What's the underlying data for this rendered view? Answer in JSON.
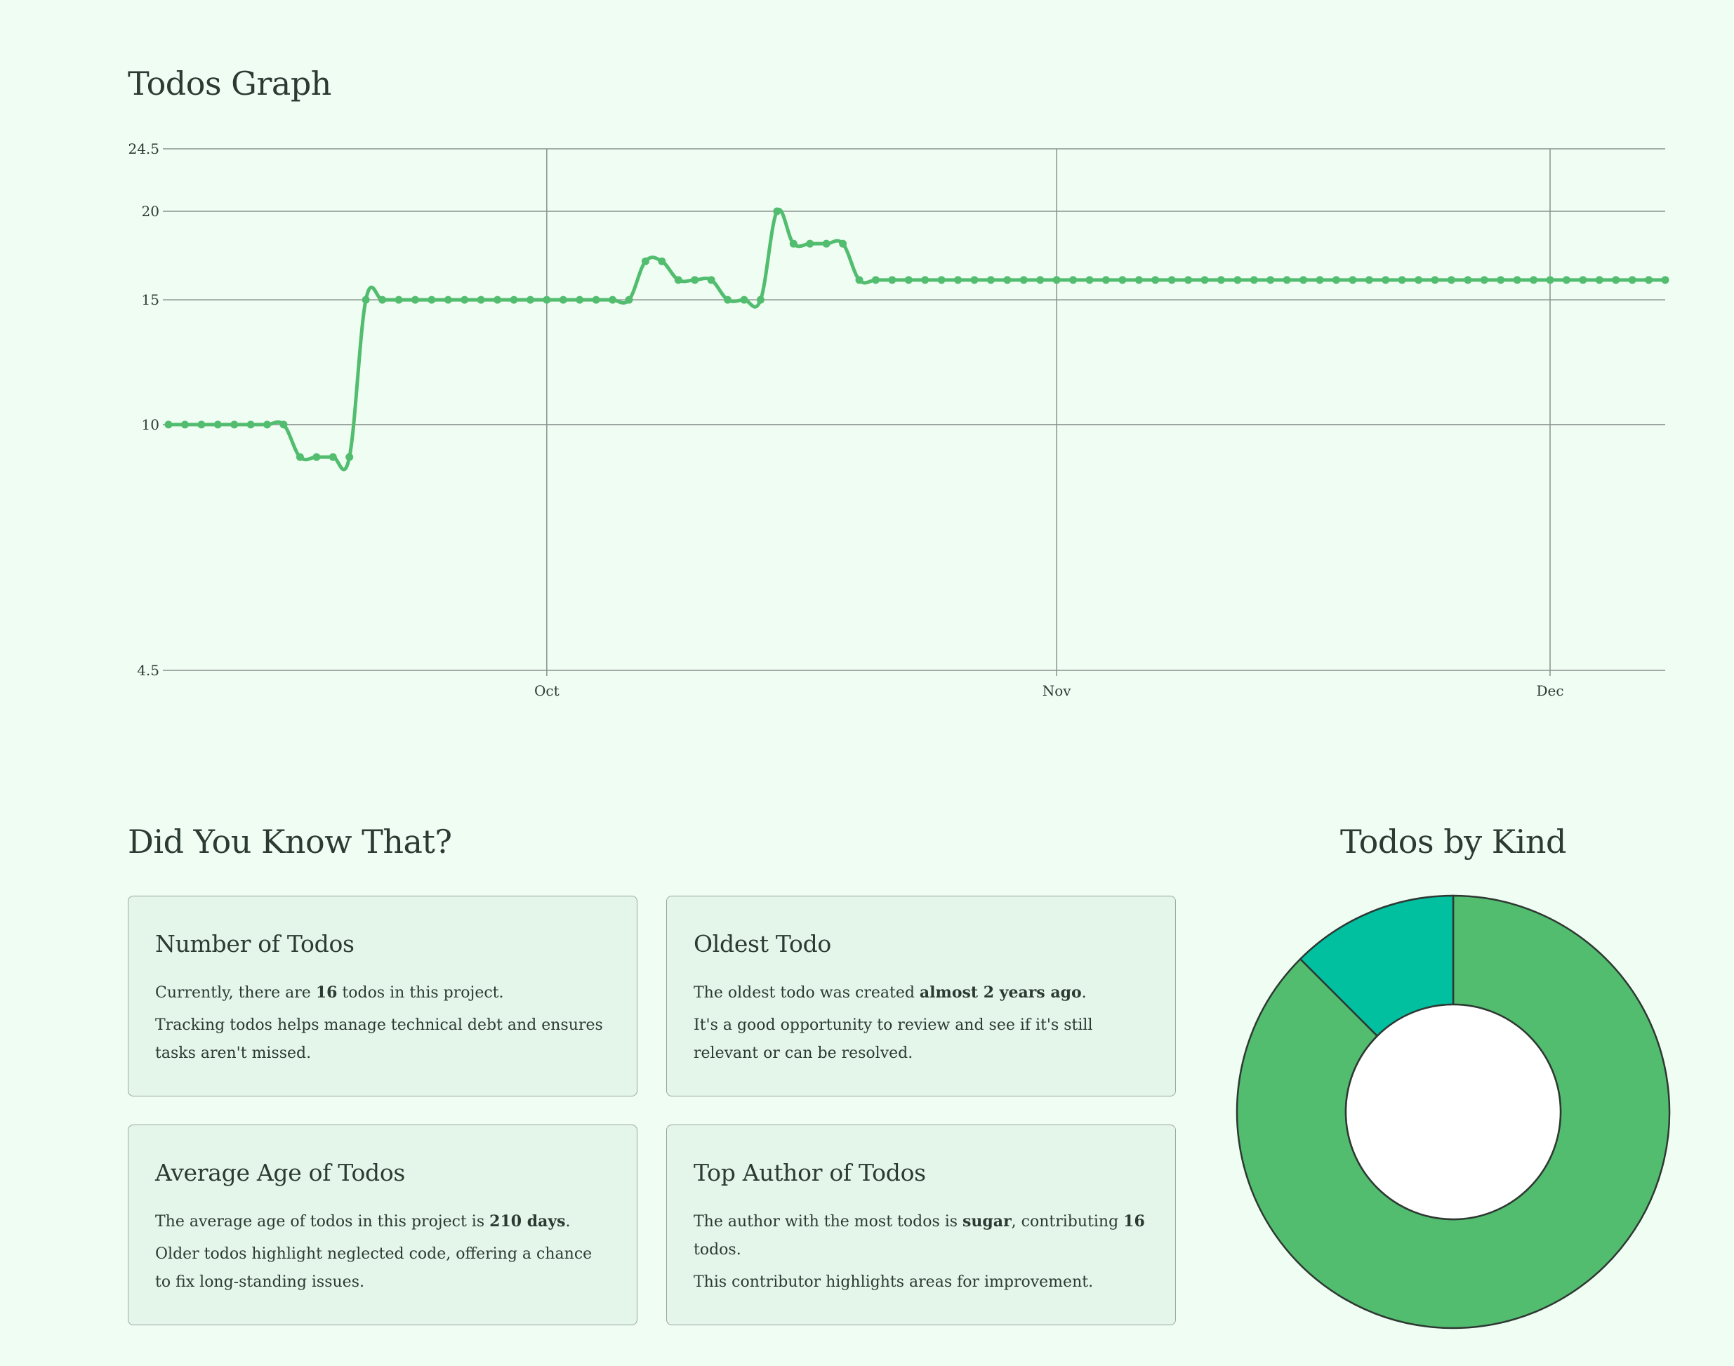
{
  "graph": {
    "title": "Todos Graph"
  },
  "chart_data": [
    {
      "type": "line",
      "x_axis_type": "date",
      "x": [
        "2024-09-08",
        "2024-09-09",
        "2024-09-10",
        "2024-09-11",
        "2024-09-12",
        "2024-09-13",
        "2024-09-14",
        "2024-09-15",
        "2024-09-16",
        "2024-09-17",
        "2024-09-18",
        "2024-09-19",
        "2024-09-20",
        "2024-09-21",
        "2024-09-22",
        "2024-09-23",
        "2024-09-24",
        "2024-09-25",
        "2024-09-26",
        "2024-09-27",
        "2024-09-28",
        "2024-09-29",
        "2024-09-30",
        "2024-10-01",
        "2024-10-02",
        "2024-10-03",
        "2024-10-04",
        "2024-10-05",
        "2024-10-06",
        "2024-10-07",
        "2024-10-08",
        "2024-10-09",
        "2024-10-10",
        "2024-10-11",
        "2024-10-12",
        "2024-10-13",
        "2024-10-14",
        "2024-10-15",
        "2024-10-16",
        "2024-10-17",
        "2024-10-18",
        "2024-10-19",
        "2024-10-20",
        "2024-10-21",
        "2024-10-22",
        "2024-10-23",
        "2024-10-24",
        "2024-10-25",
        "2024-10-26",
        "2024-10-27",
        "2024-10-28",
        "2024-10-29",
        "2024-10-30",
        "2024-10-31",
        "2024-11-01",
        "2024-11-02",
        "2024-11-03",
        "2024-11-04",
        "2024-11-05",
        "2024-11-06",
        "2024-11-07",
        "2024-11-08",
        "2024-11-09",
        "2024-11-10",
        "2024-11-11",
        "2024-11-12",
        "2024-11-13",
        "2024-11-14",
        "2024-11-15",
        "2024-11-16",
        "2024-11-17",
        "2024-11-18",
        "2024-11-19",
        "2024-11-20",
        "2024-11-21",
        "2024-11-22",
        "2024-11-23",
        "2024-11-24",
        "2024-11-25",
        "2024-11-26",
        "2024-11-27",
        "2024-11-28",
        "2024-11-29",
        "2024-11-30",
        "2024-12-01",
        "2024-12-02",
        "2024-12-03",
        "2024-12-04",
        "2024-12-05",
        "2024-12-06",
        "2024-12-07",
        "2024-12-08"
      ],
      "values": [
        10,
        10,
        10,
        10,
        10,
        10,
        10,
        10,
        9,
        9,
        9,
        9,
        15,
        15,
        15,
        15,
        15,
        15,
        15,
        15,
        15,
        15,
        15,
        15,
        15,
        15,
        15,
        15,
        15,
        17,
        17,
        16,
        16,
        16,
        15,
        15,
        15,
        20,
        18,
        18,
        18,
        18,
        16,
        16,
        16,
        16,
        16,
        16,
        16,
        16,
        16,
        16,
        16,
        16,
        16,
        16,
        16,
        16,
        16,
        16,
        16,
        16,
        16,
        16,
        16,
        16,
        16,
        16,
        16,
        16,
        16,
        16,
        16,
        16,
        16,
        16,
        16,
        16,
        16,
        16,
        16,
        16,
        16,
        16,
        16,
        16,
        16,
        16,
        16,
        16,
        16,
        16
      ],
      "x_ticks": [
        {
          "date": "2024-10-01",
          "label": "Oct"
        },
        {
          "date": "2024-11-01",
          "label": "Nov"
        },
        {
          "date": "2024-12-01",
          "label": "Dec"
        }
      ],
      "y_ticks": [
        "4.5",
        "10",
        "15",
        "20",
        "24.5"
      ],
      "ylim": [
        4.5,
        24.5
      ],
      "y_scale": "log",
      "grid": true,
      "line_color": "#52bd6e"
    },
    {
      "type": "pie",
      "donut": true,
      "title": "Todos by Kind",
      "values": [
        14,
        2
      ],
      "colors": [
        "#52bd6e",
        "#00c0a0"
      ],
      "stroke_color": "#2e3833"
    }
  ],
  "facts": {
    "title": "Did You Know That?",
    "number_of_todos": {
      "heading": "Number of Todos",
      "line1_pre": "Currently, there are ",
      "count": "16",
      "line1_post": " todos in this project.",
      "line2": "Tracking todos helps manage technical debt and ensures tasks aren't missed."
    },
    "oldest_todo": {
      "heading": "Oldest Todo",
      "line1_pre": "The oldest todo was created ",
      "age": "almost 2 years ago",
      "line1_post": ".",
      "line2": "It's a good opportunity to review and see if it's still relevant or can be resolved."
    },
    "average_age": {
      "heading": "Average Age of Todos",
      "line1_pre": "The average age of todos in this project is ",
      "days": "210 days",
      "line1_post": ".",
      "line2": "Older todos highlight neglected code, offering a chance to fix long-standing issues."
    },
    "top_author": {
      "heading": "Top Author of Todos",
      "line1_pre": "The author with the most todos is ",
      "author": "sugar",
      "line1_mid": ", contributing ",
      "count": "16",
      "line1_post": " todos.",
      "line2": "This contributor highlights areas for improvement."
    }
  }
}
